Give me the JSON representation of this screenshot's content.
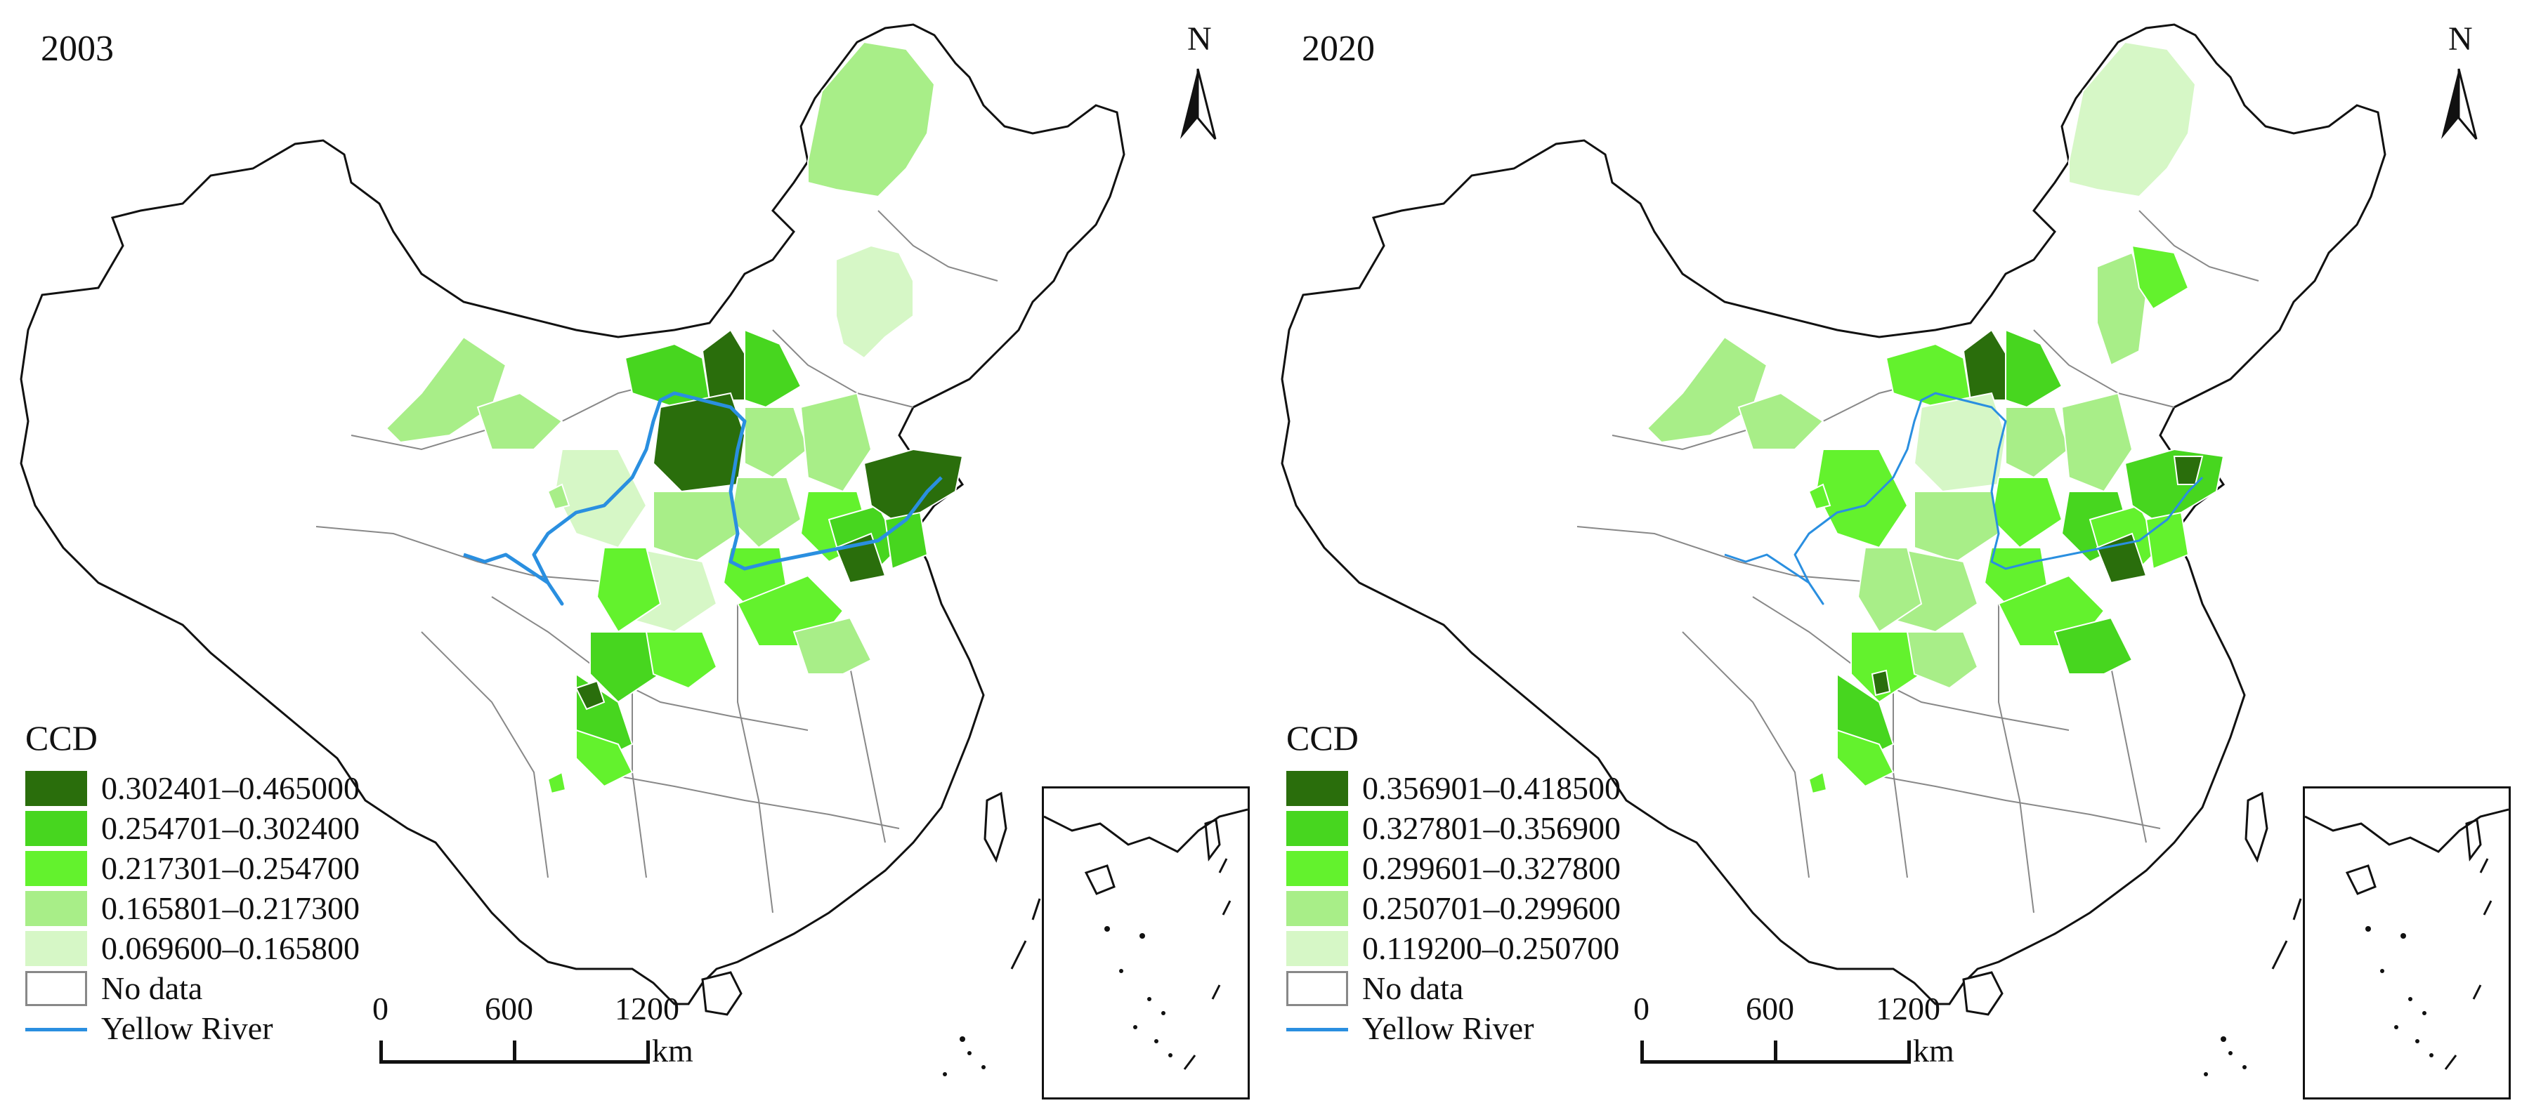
{
  "panels": [
    {
      "year": "2003",
      "north_label": "N",
      "legend": {
        "title": "CCD",
        "classes": [
          {
            "label": "0.302401–0.465000",
            "color": "#2a6e0c"
          },
          {
            "label": "0.254701–0.302400",
            "color": "#47d61f"
          },
          {
            "label": "0.217301–0.254700",
            "color": "#63f22d"
          },
          {
            "label": "0.165801–0.217300",
            "color": "#a8ee88"
          },
          {
            "label": "0.069600–0.165800",
            "color": "#d6f7c6"
          }
        ],
        "no_data_label": "No data",
        "river_label": "Yellow River"
      },
      "scale": {
        "ticks": [
          "0",
          "600",
          "1200"
        ],
        "unit": "km"
      }
    },
    {
      "year": "2020",
      "north_label": "N",
      "legend": {
        "title": "CCD",
        "classes": [
          {
            "label": "0.356901–0.418500",
            "color": "#2a6e0c"
          },
          {
            "label": "0.327801–0.356900",
            "color": "#47d61f"
          },
          {
            "label": "0.299601–0.327800",
            "color": "#63f22d"
          },
          {
            "label": "0.250701–0.299600",
            "color": "#a8ee88"
          },
          {
            "label": "0.119200–0.250700",
            "color": "#d6f7c6"
          }
        ],
        "no_data_label": "No data",
        "river_label": "Yellow River"
      },
      "scale": {
        "ticks": [
          "0",
          "600",
          "1200"
        ],
        "unit": "km"
      }
    }
  ],
  "colors": {
    "river": "#2a8fe0",
    "boundary": "#111111",
    "province_line": "#888888",
    "no_data_fill": "#ffffff"
  }
}
